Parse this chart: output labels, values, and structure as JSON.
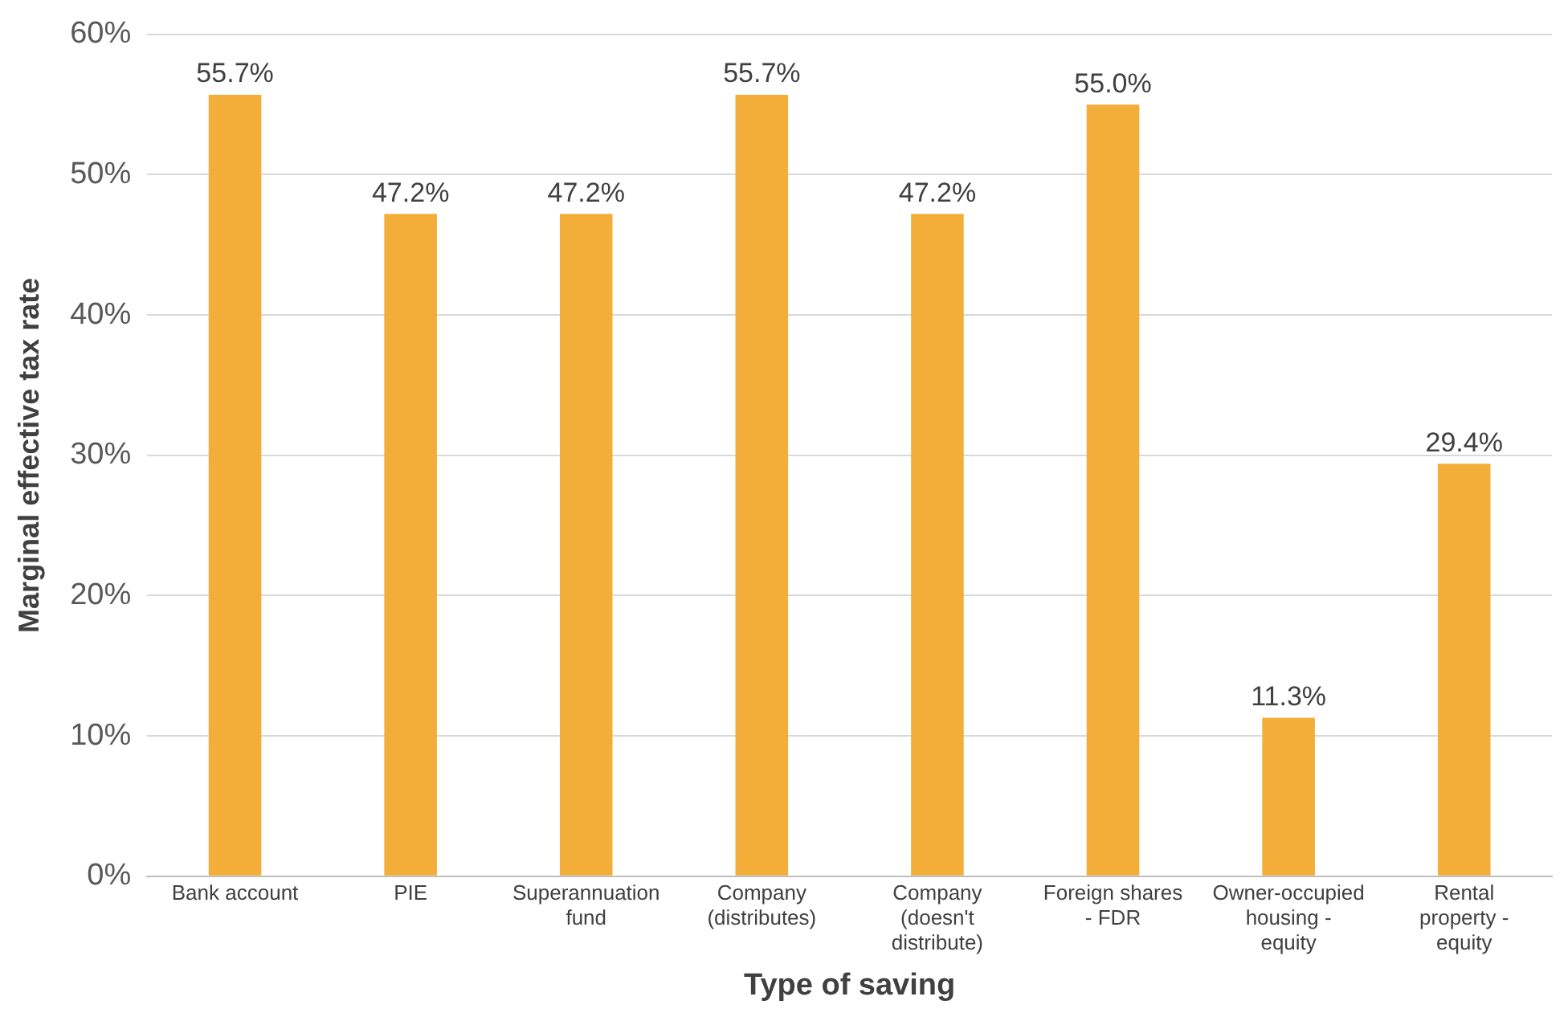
{
  "chart_data": {
    "type": "bar",
    "xlabel": "Type of saving",
    "ylabel": "Marginal effective tax rate",
    "categories": [
      "Bank account",
      "PIE",
      "Superannuation fund",
      "Company (distributes)",
      "Company (doesn't distribute)",
      "Foreign shares - FDR",
      "Owner-occupied housing - equity",
      "Rental property - equity"
    ],
    "values": [
      55.7,
      47.2,
      47.2,
      55.7,
      47.2,
      55.0,
      11.3,
      29.4
    ],
    "value_labels": [
      "55.7%",
      "47.2%",
      "47.2%",
      "55.7%",
      "47.2%",
      "55.0%",
      "11.3%",
      "29.4%"
    ],
    "color": "#f2ae38",
    "ylim": [
      0,
      60
    ],
    "yticks": [
      {
        "value": 0,
        "label": "0%"
      },
      {
        "value": 10,
        "label": "10%"
      },
      {
        "value": 20,
        "label": "20%"
      },
      {
        "value": 30,
        "label": "30%"
      },
      {
        "value": 40,
        "label": "40%"
      },
      {
        "value": 50,
        "label": "50%"
      },
      {
        "value": 60,
        "label": "60%"
      }
    ],
    "grid": "y",
    "legend": false
  }
}
